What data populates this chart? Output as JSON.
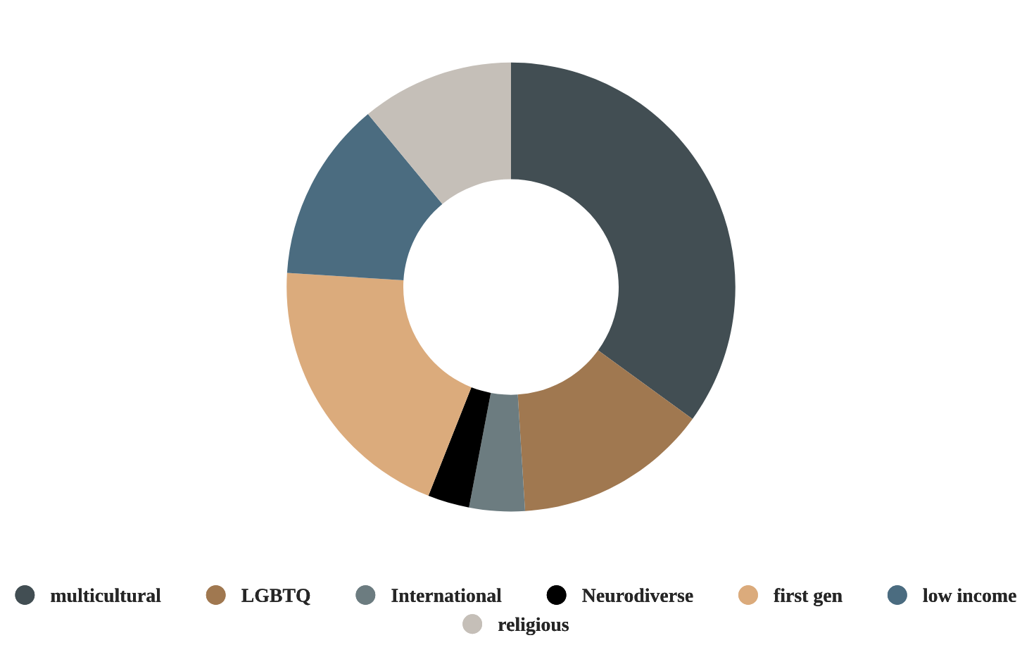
{
  "chart_data": {
    "type": "donut",
    "categories": [
      "multicultural",
      "LGBTQ",
      "International",
      "Neurodiverse",
      "first gen",
      "low income",
      "religious"
    ],
    "values": [
      35,
      14,
      4,
      3,
      20,
      13,
      11
    ],
    "colors": [
      "#424e53",
      "#a07850",
      "#6c7c80",
      "#000000",
      "#dbab7c",
      "#4b6c80",
      "#c5bfb8"
    ],
    "legend": "bottom"
  }
}
